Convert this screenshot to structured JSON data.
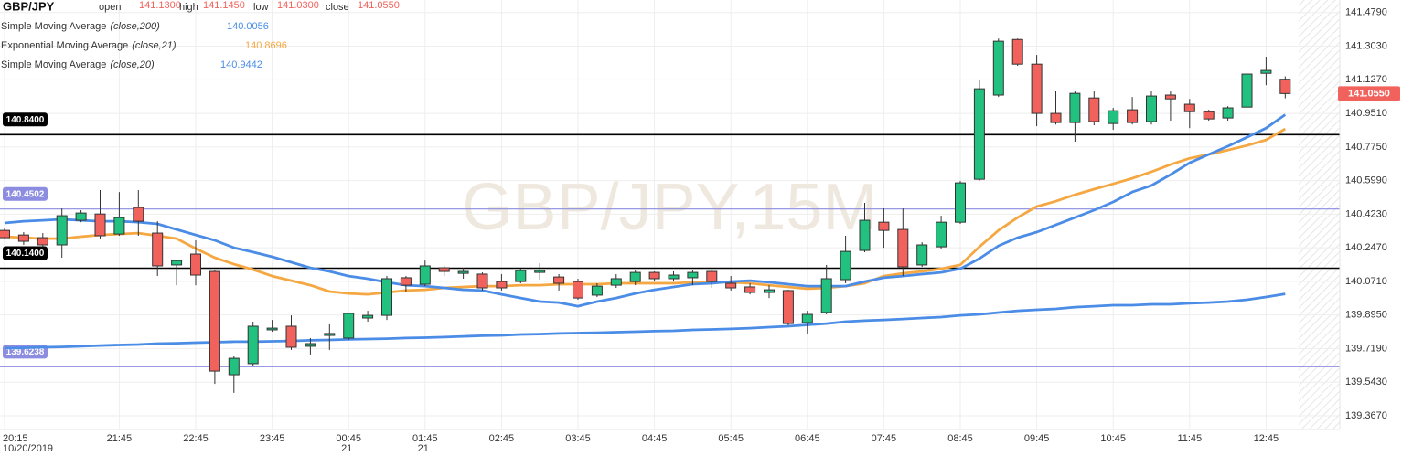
{
  "chart_data": {
    "type": "candlestick",
    "symbol": "GBP/JPY",
    "watermark": "GBP/JPY,15M",
    "ohlc_header": [
      {
        "label": "open",
        "value": "141.1300"
      },
      {
        "label": "high",
        "value": "141.1450"
      },
      {
        "label": "low",
        "value": "141.0300"
      },
      {
        "label": "close",
        "value": "141.0550"
      }
    ],
    "categories": [
      "20:15",
      null,
      null,
      null,
      null,
      null,
      "21:45",
      null,
      null,
      null,
      "22:45",
      null,
      null,
      null,
      "23:45",
      null,
      null,
      null,
      "00:45",
      null,
      null,
      null,
      "01:45",
      null,
      null,
      null,
      "02:45",
      null,
      null,
      null,
      "03:45",
      null,
      null,
      null,
      "04:45",
      null,
      null,
      null,
      "05:45",
      null,
      null,
      null,
      "06:45",
      null,
      null,
      null,
      "07:45",
      null,
      null,
      null,
      "08:45",
      null,
      null,
      null,
      "09:45",
      null,
      null,
      null,
      "10:45",
      null,
      null,
      null,
      "11:45",
      null,
      null,
      null,
      "12:45",
      null
    ],
    "category_sublabels": [
      "10/20/2019",
      null,
      null,
      null,
      null,
      null,
      null,
      null,
      null,
      null,
      null,
      null,
      null,
      null,
      null,
      null,
      null,
      null,
      "21",
      null,
      null,
      null,
      "21",
      null,
      null,
      null,
      null,
      null,
      null,
      null,
      null,
      null,
      null,
      null,
      null,
      null,
      null,
      null,
      null,
      null,
      null,
      null,
      null,
      null,
      null,
      null,
      null,
      null,
      null,
      null,
      null,
      null,
      null,
      null,
      null,
      null,
      null,
      null,
      null,
      null,
      null,
      null,
      null,
      null,
      null,
      null,
      null,
      null
    ],
    "open": [
      140.338,
      140.314,
      140.3,
      140.262,
      140.391,
      140.424,
      140.319,
      140.458,
      140.324,
      140.157,
      140.214,
      140.123,
      139.582,
      139.64,
      139.817,
      139.836,
      139.731,
      139.788,
      139.774,
      139.879,
      139.893,
      140.09,
      140.056,
      140.142,
      140.113,
      140.109,
      140.07,
      140.07,
      140.118,
      140.094,
      140.07,
      139.999,
      140.051,
      140.07,
      140.118,
      140.085,
      140.09,
      140.123,
      140.061,
      140.042,
      140.013,
      140.023,
      139.855,
      139.908,
      140.08,
      140.233,
      140.381,
      140.343,
      140.157,
      140.252,
      140.381,
      140.606,
      141.047,
      141.338,
      141.209,
      140.951,
      140.903,
      141.032,
      140.898,
      140.97,
      140.908,
      141.047,
      140.999,
      140.96,
      140.927,
      140.984,
      141.161,
      141.13
    ],
    "high": [
      140.348,
      140.329,
      140.324,
      140.453,
      140.444,
      140.549,
      140.539,
      140.549,
      140.386,
      140.18,
      140.286,
      140.128,
      139.678,
      139.86,
      139.869,
      139.893,
      139.774,
      139.846,
      139.908,
      139.917,
      140.099,
      140.099,
      140.18,
      140.152,
      140.142,
      140.118,
      140.109,
      140.137,
      140.166,
      140.109,
      140.085,
      140.061,
      140.109,
      140.128,
      140.123,
      140.123,
      140.128,
      140.128,
      140.099,
      140.061,
      140.051,
      140.027,
      139.917,
      140.157,
      140.31,
      140.482,
      140.453,
      140.453,
      140.276,
      140.415,
      140.597,
      141.128,
      141.343,
      141.343,
      141.257,
      141.066,
      141.066,
      141.066,
      140.98,
      141.037,
      141.066,
      141.066,
      141.027,
      140.97,
      140.989,
      141.171,
      141.248,
      141.145
    ],
    "low": [
      140.291,
      140.262,
      140.252,
      140.195,
      140.381,
      140.291,
      140.31,
      140.31,
      140.099,
      140.051,
      140.051,
      139.534,
      139.487,
      139.63,
      139.807,
      139.712,
      139.688,
      139.712,
      139.764,
      139.86,
      139.869,
      140.013,
      140.046,
      140.099,
      140.085,
      140.023,
      140.023,
      140.061,
      140.08,
      140.023,
      139.975,
      139.989,
      140.037,
      140.051,
      140.07,
      140.07,
      140.051,
      140.037,
      140.023,
      140.003,
      139.984,
      139.841,
      139.798,
      139.898,
      140.061,
      140.224,
      140.247,
      140.099,
      140.147,
      140.243,
      140.372,
      140.597,
      141.037,
      141.2,
      140.884,
      140.893,
      140.803,
      140.889,
      140.865,
      140.893,
      140.893,
      140.913,
      140.874,
      140.913,
      140.913,
      140.975,
      141.099,
      141.03
    ],
    "close": [
      140.3,
      140.281,
      140.262,
      140.415,
      140.429,
      140.31,
      140.405,
      140.386,
      140.152,
      140.18,
      140.104,
      139.601,
      139.668,
      139.836,
      139.826,
      139.726,
      139.745,
      139.798,
      139.903,
      139.893,
      140.085,
      140.051,
      140.152,
      140.123,
      140.123,
      140.037,
      140.037,
      140.128,
      140.128,
      140.061,
      139.984,
      140.046,
      140.085,
      140.118,
      140.085,
      140.104,
      140.118,
      140.07,
      140.037,
      140.013,
      140.027,
      139.85,
      139.898,
      140.085,
      140.228,
      140.391,
      140.338,
      140.147,
      140.262,
      140.381,
      140.587,
      141.08,
      141.329,
      141.209,
      140.951,
      140.903,
      141.056,
      140.908,
      140.965,
      140.903,
      141.042,
      141.027,
      140.96,
      140.922,
      140.98,
      141.157,
      141.176,
      141.055
    ],
    "up_color": "#22c17f",
    "down_color": "#f2625c",
    "overlays": [
      {
        "name": "Simple Moving Average",
        "params": "(close,200)",
        "color": "#4a8ce6",
        "last_label": "140.0056",
        "values": [
          139.721,
          139.723,
          139.726,
          139.728,
          139.731,
          139.735,
          139.738,
          139.74,
          139.745,
          139.747,
          139.75,
          139.752,
          139.755,
          139.755,
          139.757,
          139.759,
          139.762,
          139.764,
          139.767,
          139.769,
          139.771,
          139.774,
          139.776,
          139.779,
          139.783,
          139.786,
          139.788,
          139.793,
          139.795,
          139.798,
          139.8,
          139.802,
          139.805,
          139.807,
          139.81,
          139.812,
          139.817,
          139.819,
          139.822,
          139.826,
          139.831,
          139.836,
          139.843,
          139.85,
          139.86,
          139.865,
          139.869,
          139.874,
          139.879,
          139.884,
          139.893,
          139.898,
          139.908,
          139.917,
          139.922,
          139.927,
          139.936,
          139.941,
          139.946,
          139.946,
          139.951,
          139.951,
          139.956,
          139.96,
          139.965,
          139.975,
          139.989,
          140.0056
        ]
      },
      {
        "name": "Exponential Moving Average",
        "params": "(close,21)",
        "color": "#f5a742",
        "last_label": "140.8696",
        "values": [
          140.305,
          140.3,
          140.295,
          140.295,
          140.305,
          140.314,
          140.319,
          140.324,
          140.31,
          140.295,
          140.243,
          140.195,
          140.161,
          140.133,
          140.099,
          140.075,
          140.051,
          140.018,
          140.008,
          140.003,
          140.013,
          140.023,
          140.027,
          140.037,
          140.042,
          140.046,
          140.046,
          140.051,
          140.051,
          140.056,
          140.056,
          140.056,
          140.061,
          140.061,
          140.061,
          140.061,
          140.066,
          140.066,
          140.066,
          140.061,
          140.051,
          140.042,
          140.032,
          140.037,
          140.046,
          140.061,
          140.099,
          140.113,
          140.123,
          140.137,
          140.157,
          140.252,
          140.338,
          140.405,
          140.463,
          140.491,
          140.525,
          140.554,
          140.582,
          140.611,
          140.645,
          140.683,
          140.716,
          140.736,
          140.759,
          140.783,
          140.812,
          140.8696
        ]
      },
      {
        "name": "Simple Moving Average",
        "params": "(close,20)",
        "color": "#4a8ce6",
        "last_label": "140.9442",
        "values": [
          140.377,
          140.386,
          140.391,
          140.396,
          140.391,
          140.386,
          140.386,
          140.381,
          140.372,
          140.343,
          140.314,
          140.286,
          140.247,
          140.224,
          140.2,
          140.171,
          140.142,
          140.123,
          140.099,
          140.085,
          140.066,
          140.051,
          140.046,
          140.037,
          140.027,
          140.023,
          140.003,
          139.984,
          139.965,
          139.96,
          139.941,
          139.965,
          139.984,
          140.008,
          140.027,
          140.042,
          140.056,
          140.061,
          140.07,
          140.075,
          140.066,
          140.056,
          140.046,
          140.046,
          140.046,
          140.07,
          140.09,
          140.099,
          140.109,
          140.118,
          140.137,
          140.19,
          140.257,
          140.3,
          140.329,
          140.367,
          140.405,
          140.444,
          140.487,
          140.539,
          140.573,
          140.63,
          140.692,
          140.736,
          140.779,
          140.826,
          140.874,
          140.9442
        ]
      }
    ],
    "levels": [
      {
        "value": 140.84,
        "label": "140.8400",
        "color": "#000000"
      },
      {
        "value": 140.4502,
        "label": "140.4502",
        "color": "#8c8ce0"
      },
      {
        "value": 140.14,
        "label": "140.1400",
        "color": "#000000"
      },
      {
        "value": 139.6238,
        "label": "139.6238",
        "color": "#8c8ce0"
      }
    ],
    "last_price": {
      "value": 141.055,
      "label": "141.0550",
      "color": "#f2625c"
    },
    "ylim": [
      139.295,
      141.545
    ],
    "yticks": [
      {
        "value": 139.367,
        "label": "139.3670"
      },
      {
        "value": 139.543,
        "label": "139.5430"
      },
      {
        "value": 139.719,
        "label": "139.7190"
      },
      {
        "value": 139.895,
        "label": "139.8950"
      },
      {
        "value": 140.071,
        "label": "140.0710"
      },
      {
        "value": 140.247,
        "label": "140.2470"
      },
      {
        "value": 140.423,
        "label": "140.4230"
      },
      {
        "value": 140.599,
        "label": "140.5990"
      },
      {
        "value": 140.775,
        "label": "140.7750"
      },
      {
        "value": 140.951,
        "label": "140.9510"
      },
      {
        "value": 141.127,
        "label": "141.1270"
      },
      {
        "value": 141.303,
        "label": "141.3030"
      },
      {
        "value": 141.479,
        "label": "141.4790"
      }
    ],
    "grid": true
  }
}
